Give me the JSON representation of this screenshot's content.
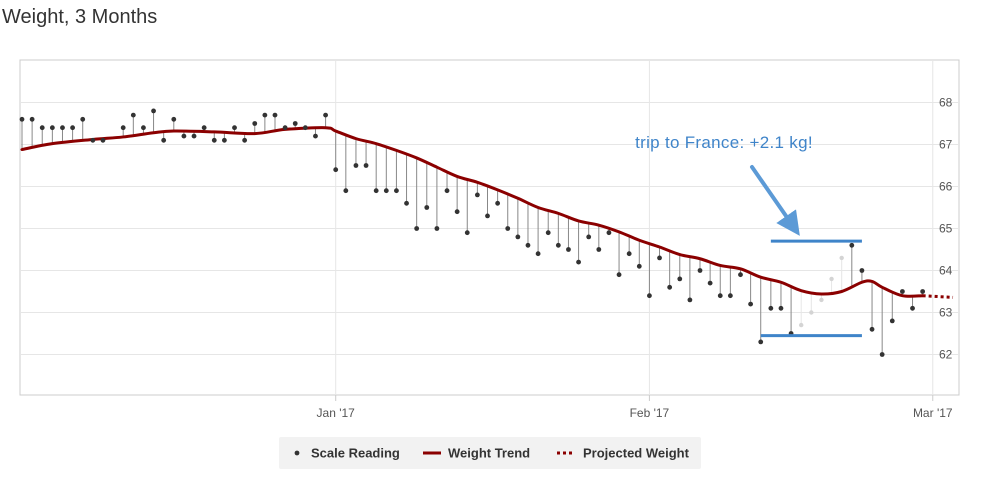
{
  "page": {
    "title": "Weight, 3 Months"
  },
  "chart_data": {
    "type": "line",
    "title": "Weight, 3 Months",
    "x_axis": {
      "type": "date",
      "start": "2016-12-01",
      "end": "2017-03-03",
      "tick_labels": [
        "Jan '17",
        "Feb '17",
        "Mar '17"
      ],
      "tick_dates": [
        "2017-01-01",
        "2017-02-01",
        "2017-03-01"
      ]
    },
    "y_axis": {
      "position": "right",
      "ylim": [
        61,
        68.5
      ],
      "ticks": [
        62,
        63,
        64,
        65,
        66,
        67,
        68
      ]
    },
    "grid": true,
    "colors": {
      "trend": "#8b0000",
      "scale_point": "#333333",
      "drop_line": "#888888",
      "annotation": "#3f84c9",
      "annotation_arrow": "#5c9ad6",
      "grid": "#e6e6e6",
      "axis": "#cccccc"
    },
    "series": [
      {
        "name": "Scale Reading",
        "marker": "dot",
        "points": [
          [
            "2016-12-01",
            67.6
          ],
          [
            "2016-12-02",
            67.6
          ],
          [
            "2016-12-03",
            67.4
          ],
          [
            "2016-12-04",
            67.4
          ],
          [
            "2016-12-05",
            67.4
          ],
          [
            "2016-12-06",
            67.4
          ],
          [
            "2016-12-07",
            67.6
          ],
          [
            "2016-12-08",
            67.1
          ],
          [
            "2016-12-09",
            67.1
          ],
          [
            "2016-12-11",
            67.4
          ],
          [
            "2016-12-12",
            67.7
          ],
          [
            "2016-12-13",
            67.4
          ],
          [
            "2016-12-14",
            67.8
          ],
          [
            "2016-12-15",
            67.1
          ],
          [
            "2016-12-16",
            67.6
          ],
          [
            "2016-12-17",
            67.2
          ],
          [
            "2016-12-18",
            67.2
          ],
          [
            "2016-12-19",
            67.4
          ],
          [
            "2016-12-20",
            67.1
          ],
          [
            "2016-12-21",
            67.1
          ],
          [
            "2016-12-22",
            67.4
          ],
          [
            "2016-12-23",
            67.1
          ],
          [
            "2016-12-24",
            67.5
          ],
          [
            "2016-12-25",
            67.7
          ],
          [
            "2016-12-26",
            67.7
          ],
          [
            "2016-12-27",
            67.4
          ],
          [
            "2016-12-28",
            67.5
          ],
          [
            "2016-12-29",
            67.4
          ],
          [
            "2016-12-30",
            67.2
          ],
          [
            "2016-12-31",
            67.7
          ],
          [
            "2017-01-01",
            66.4
          ],
          [
            "2017-01-02",
            65.9
          ],
          [
            "2017-01-03",
            66.5
          ],
          [
            "2017-01-04",
            66.5
          ],
          [
            "2017-01-05",
            65.9
          ],
          [
            "2017-01-06",
            65.9
          ],
          [
            "2017-01-07",
            65.9
          ],
          [
            "2017-01-08",
            65.6
          ],
          [
            "2017-01-09",
            65.0
          ],
          [
            "2017-01-10",
            65.5
          ],
          [
            "2017-01-11",
            65.0
          ],
          [
            "2017-01-12",
            65.9
          ],
          [
            "2017-01-13",
            65.4
          ],
          [
            "2017-01-14",
            64.9
          ],
          [
            "2017-01-15",
            65.8
          ],
          [
            "2017-01-16",
            65.3
          ],
          [
            "2017-01-17",
            65.6
          ],
          [
            "2017-01-18",
            65.0
          ],
          [
            "2017-01-19",
            64.8
          ],
          [
            "2017-01-20",
            64.6
          ],
          [
            "2017-01-21",
            64.4
          ],
          [
            "2017-01-22",
            64.9
          ],
          [
            "2017-01-23",
            64.6
          ],
          [
            "2017-01-24",
            64.5
          ],
          [
            "2017-01-25",
            64.2
          ],
          [
            "2017-01-26",
            64.8
          ],
          [
            "2017-01-27",
            64.5
          ],
          [
            "2017-01-28",
            64.9
          ],
          [
            "2017-01-29",
            63.9
          ],
          [
            "2017-01-30",
            64.4
          ],
          [
            "2017-01-31",
            64.1
          ],
          [
            "2017-02-01",
            63.4
          ],
          [
            "2017-02-02",
            64.3
          ],
          [
            "2017-02-03",
            63.6
          ],
          [
            "2017-02-04",
            63.8
          ],
          [
            "2017-02-05",
            63.3
          ],
          [
            "2017-02-06",
            64.0
          ],
          [
            "2017-02-07",
            63.7
          ],
          [
            "2017-02-08",
            63.4
          ],
          [
            "2017-02-09",
            63.4
          ],
          [
            "2017-02-10",
            63.9
          ],
          [
            "2017-02-11",
            63.2
          ],
          [
            "2017-02-12",
            62.3
          ],
          [
            "2017-02-13",
            63.1
          ],
          [
            "2017-02-14",
            63.1
          ],
          [
            "2017-02-15",
            62.5
          ],
          [
            "2017-02-21",
            64.6
          ],
          [
            "2017-02-22",
            64.0
          ],
          [
            "2017-02-23",
            62.6
          ],
          [
            "2017-02-24",
            62.0
          ],
          [
            "2017-02-25",
            62.8
          ],
          [
            "2017-02-26",
            63.5
          ],
          [
            "2017-02-27",
            63.1
          ],
          [
            "2017-02-28",
            63.5
          ]
        ]
      },
      {
        "name": "Scale Reading (faded, trip)",
        "marker": "dot-faded",
        "points": [
          [
            "2017-02-16",
            62.7
          ],
          [
            "2017-02-17",
            63.0
          ],
          [
            "2017-02-18",
            63.3
          ],
          [
            "2017-02-19",
            63.8
          ],
          [
            "2017-02-20",
            64.3
          ]
        ]
      },
      {
        "name": "Weight Trend",
        "style": "solid",
        "points": [
          [
            "2016-12-01",
            66.88
          ],
          [
            "2016-12-04",
            67.02
          ],
          [
            "2016-12-08",
            67.12
          ],
          [
            "2016-12-11",
            67.18
          ],
          [
            "2016-12-14",
            67.28
          ],
          [
            "2016-12-16",
            67.32
          ],
          [
            "2016-12-20",
            67.3
          ],
          [
            "2016-12-24",
            67.26
          ],
          [
            "2016-12-27",
            67.36
          ],
          [
            "2016-12-31",
            67.4
          ],
          [
            "2017-01-01",
            67.32
          ],
          [
            "2017-01-03",
            67.14
          ],
          [
            "2017-01-05",
            67.02
          ],
          [
            "2017-01-07",
            66.86
          ],
          [
            "2017-01-09",
            66.68
          ],
          [
            "2017-01-11",
            66.46
          ],
          [
            "2017-01-13",
            66.24
          ],
          [
            "2017-01-15",
            66.1
          ],
          [
            "2017-01-17",
            65.92
          ],
          [
            "2017-01-19",
            65.72
          ],
          [
            "2017-01-21",
            65.5
          ],
          [
            "2017-01-23",
            65.36
          ],
          [
            "2017-01-25",
            65.18
          ],
          [
            "2017-01-27",
            65.08
          ],
          [
            "2017-01-29",
            64.92
          ],
          [
            "2017-01-31",
            64.72
          ],
          [
            "2017-02-02",
            64.56
          ],
          [
            "2017-02-04",
            64.38
          ],
          [
            "2017-02-06",
            64.28
          ],
          [
            "2017-02-08",
            64.12
          ],
          [
            "2017-02-10",
            64.04
          ],
          [
            "2017-02-12",
            63.84
          ],
          [
            "2017-02-14",
            63.72
          ],
          [
            "2017-02-16",
            63.52
          ],
          [
            "2017-02-18",
            63.44
          ],
          [
            "2017-02-20",
            63.5
          ],
          [
            "2017-02-22",
            63.72
          ],
          [
            "2017-02-23",
            63.74
          ],
          [
            "2017-02-24",
            63.6
          ],
          [
            "2017-02-26",
            63.4
          ],
          [
            "2017-02-28",
            63.4
          ]
        ]
      },
      {
        "name": "Projected Weight",
        "style": "dotted",
        "points": [
          [
            "2017-02-28",
            63.4
          ],
          [
            "2017-03-03",
            63.36
          ]
        ]
      }
    ],
    "annotations": [
      {
        "text": "trip to France: +2.1 kg!",
        "upper_line": {
          "from": "2017-02-13",
          "to": "2017-02-22",
          "y": 64.7
        },
        "lower_line": {
          "from": "2017-02-12",
          "to": "2017-02-22",
          "y": 62.45
        }
      }
    ],
    "legend": {
      "placement": "bottom-center",
      "items": [
        {
          "label": "Scale Reading",
          "symbol": "dot"
        },
        {
          "label": "Weight Trend",
          "symbol": "line"
        },
        {
          "label": "Projected Weight",
          "symbol": "dotted-line"
        }
      ]
    }
  }
}
